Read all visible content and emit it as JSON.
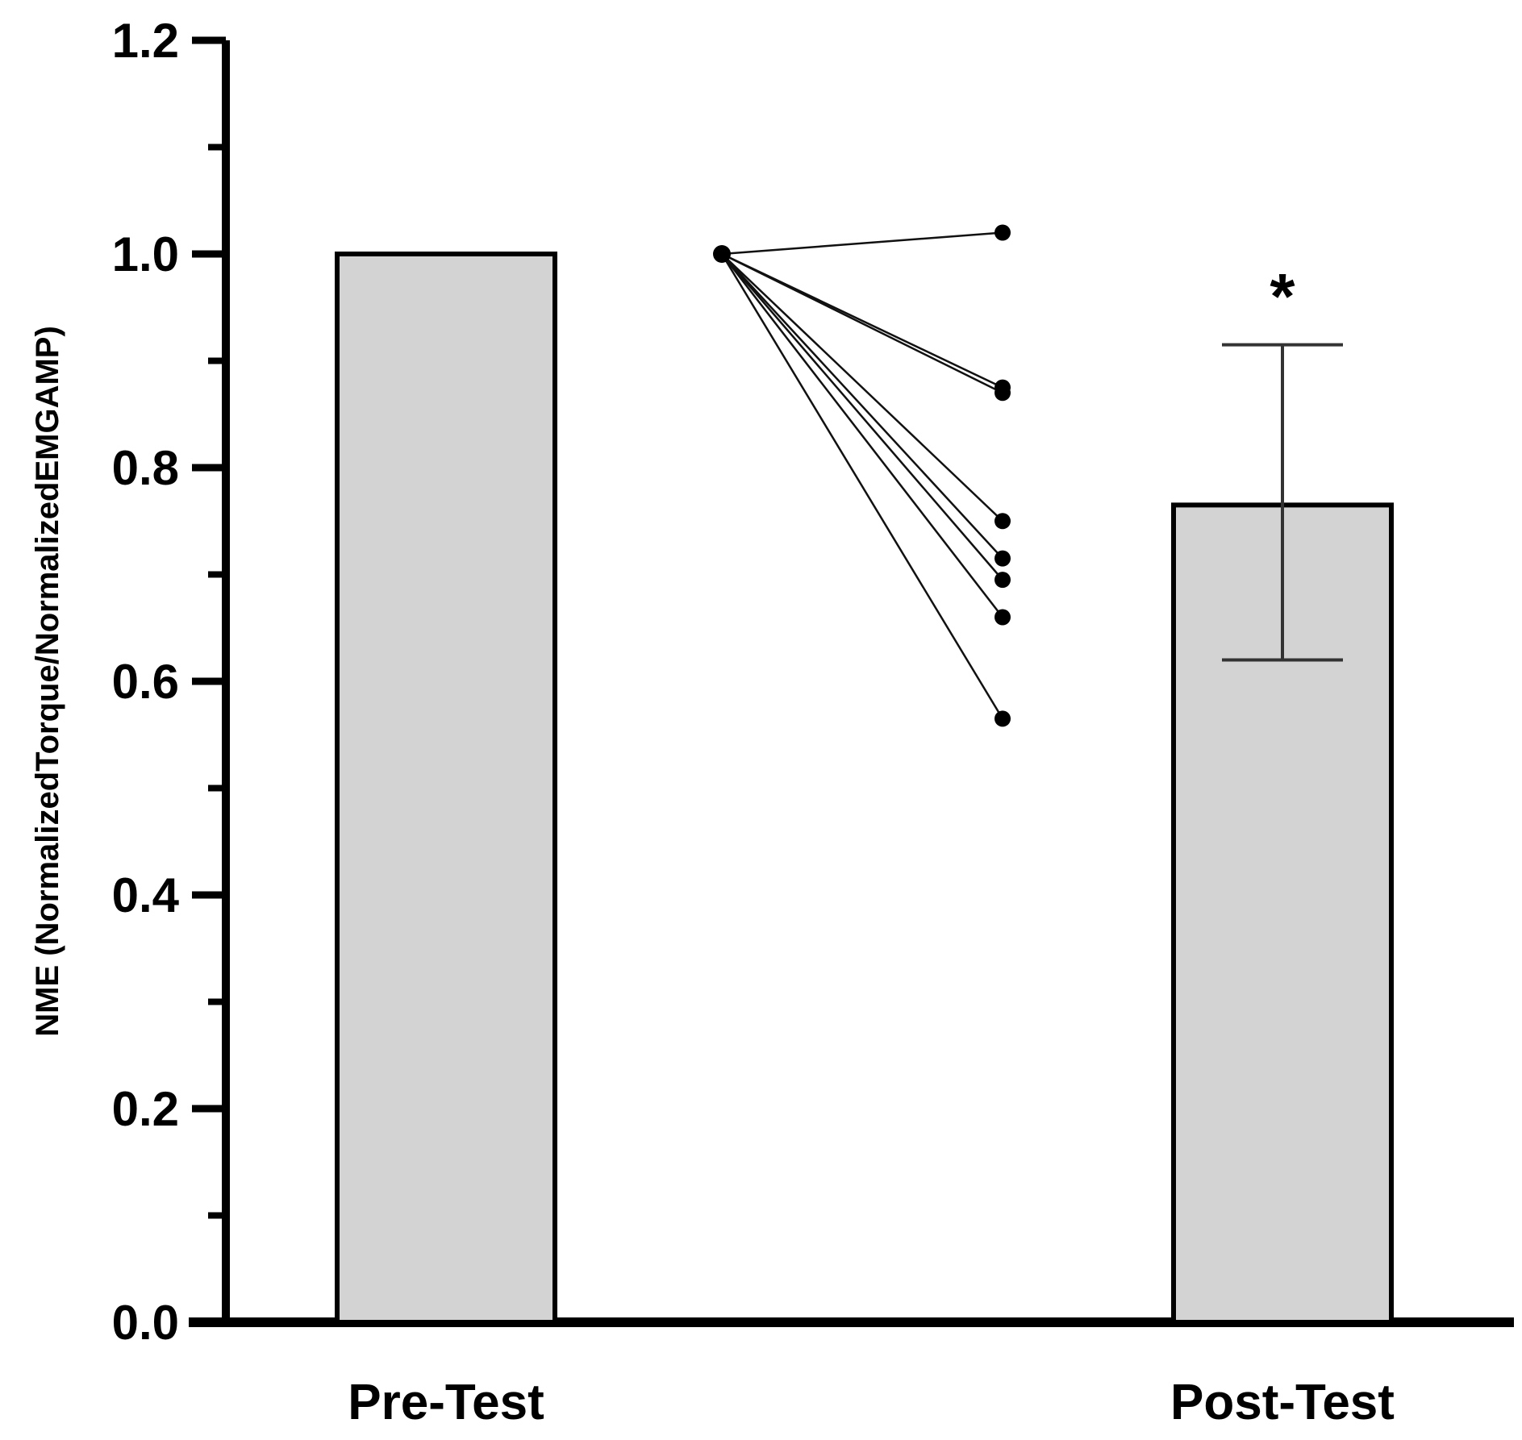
{
  "chart_data": {
    "type": "bar",
    "ylabel": "NME (NormalizedTorque/NormalizedEMGAMP)",
    "xlabel": "",
    "ylim": [
      0,
      1.2
    ],
    "yticks": [
      "0.0",
      "0.2",
      "0.4",
      "0.6",
      "0.8",
      "1.0",
      "1.2"
    ],
    "ytick_values": [
      0,
      0.2,
      0.4,
      0.6,
      0.8,
      1.0,
      1.2
    ],
    "minor_tick_step": 0.1,
    "categories": [
      "Pre-Test",
      "Post-Test"
    ],
    "values": [
      1.0,
      0.765
    ],
    "error_bars": [
      null,
      {
        "lower": 0.62,
        "upper": 0.915
      }
    ],
    "bar_color": "#d3d3d3",
    "annotation": {
      "text": "*",
      "category": "Post-Test"
    },
    "paired_individuals": {
      "pre": [
        1.0,
        1.0,
        1.0,
        1.0,
        1.0,
        1.0,
        1.0,
        1.0
      ],
      "post": [
        1.02,
        0.875,
        0.87,
        0.75,
        0.715,
        0.695,
        0.66,
        0.565
      ]
    },
    "grid": false,
    "legend": "none"
  }
}
